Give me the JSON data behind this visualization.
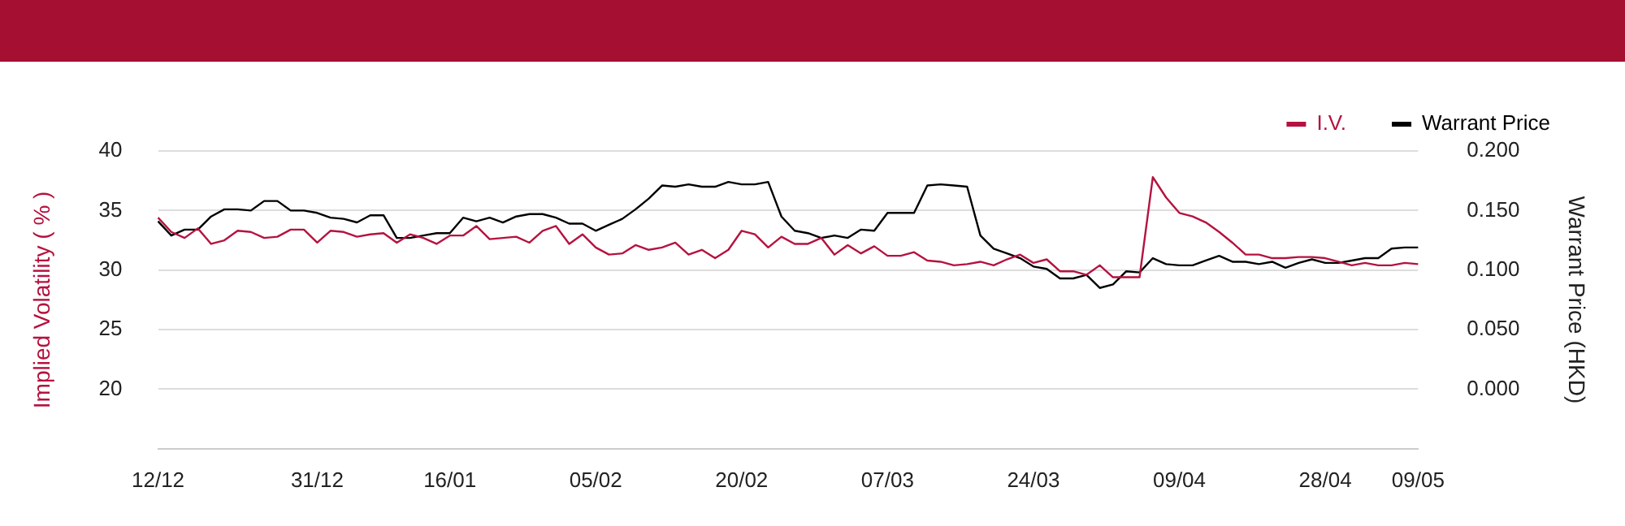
{
  "chart_data": {
    "type": "line",
    "ylabel": "Implied Volatility ( % )",
    "y2label": "Warrant Price (HKD)",
    "categories": [
      "12/12",
      null,
      null,
      null,
      null,
      null,
      null,
      null,
      null,
      null,
      null,
      null,
      "31/12",
      null,
      null,
      null,
      null,
      null,
      null,
      null,
      null,
      null,
      "16/01",
      null,
      null,
      null,
      null,
      null,
      null,
      null,
      null,
      null,
      null,
      "05/02",
      null,
      null,
      null,
      null,
      null,
      null,
      null,
      null,
      null,
      null,
      "20/02",
      null,
      null,
      null,
      null,
      null,
      null,
      null,
      null,
      null,
      null,
      "07/03",
      null,
      null,
      null,
      null,
      null,
      null,
      null,
      null,
      null,
      null,
      "24/03",
      null,
      null,
      null,
      null,
      null,
      null,
      null,
      null,
      null,
      null,
      "09/04",
      null,
      null,
      null,
      null,
      null,
      null,
      null,
      null,
      null,
      null,
      "28/04",
      null,
      null,
      null,
      null,
      null,
      null,
      "09/05"
    ],
    "series": [
      {
        "name": "I.V.",
        "color": "#b5123f",
        "values": [
          34.4,
          33.2,
          32.7,
          33.5,
          32.2,
          32.5,
          33.3,
          33.2,
          32.7,
          32.8,
          33.4,
          33.4,
          32.3,
          33.3,
          33.2,
          32.8,
          33.0,
          33.1,
          32.3,
          33.0,
          32.7,
          32.2,
          32.9,
          32.9,
          33.7,
          32.6,
          32.7,
          32.8,
          32.3,
          33.3,
          33.7,
          32.2,
          33.0,
          31.9,
          31.3,
          31.4,
          32.1,
          31.7,
          31.9,
          32.3,
          31.3,
          31.7,
          31.0,
          31.7,
          33.3,
          33.0,
          31.9,
          32.8,
          32.2,
          32.2,
          32.7,
          31.3,
          32.1,
          31.4,
          32.0,
          31.2,
          31.2,
          31.5,
          30.8,
          30.7,
          30.4,
          30.5,
          30.7,
          30.4,
          30.9,
          31.3,
          30.6,
          30.9,
          29.9,
          29.9,
          29.6,
          30.4,
          29.4,
          29.4,
          29.4,
          37.8,
          36.1,
          34.8,
          34.5,
          34.0,
          33.2,
          32.3,
          31.3,
          31.3,
          31.0,
          31.0,
          31.1,
          31.1,
          31.0,
          30.7,
          30.4,
          30.6,
          30.4,
          30.4,
          30.6,
          30.5
        ]
      },
      {
        "name": "Warrant Price",
        "color": "#000000",
        "axis": "y2",
        "values": [
          0.141,
          0.129,
          0.134,
          0.134,
          0.145,
          0.151,
          0.151,
          0.15,
          0.158,
          0.158,
          0.15,
          0.15,
          0.148,
          0.144,
          0.143,
          0.14,
          0.146,
          0.146,
          0.127,
          0.127,
          0.129,
          0.131,
          0.131,
          0.144,
          0.141,
          0.144,
          0.14,
          0.145,
          0.147,
          0.147,
          0.144,
          0.139,
          0.139,
          0.133,
          0.138,
          0.143,
          0.151,
          0.16,
          0.171,
          0.17,
          0.172,
          0.17,
          0.17,
          0.174,
          0.172,
          0.172,
          0.174,
          0.145,
          0.133,
          0.131,
          0.127,
          0.129,
          0.127,
          0.134,
          0.133,
          0.148,
          0.148,
          0.148,
          0.171,
          0.172,
          0.171,
          0.17,
          0.129,
          0.118,
          0.114,
          0.11,
          0.103,
          0.101,
          0.093,
          0.093,
          0.096,
          0.085,
          0.088,
          0.099,
          0.098,
          0.11,
          0.105,
          0.104,
          0.104,
          0.108,
          0.112,
          0.107,
          0.107,
          0.105,
          0.107,
          0.102,
          0.106,
          0.109,
          0.106,
          0.106,
          0.108,
          0.11,
          0.11,
          0.118,
          0.119,
          0.119
        ]
      }
    ],
    "ylim": [
      15,
      40
    ],
    "yticks": [
      20,
      25,
      30,
      35,
      40
    ],
    "y2lim": [
      -0.05,
      0.2
    ],
    "y2ticks": [
      {
        "value": 0,
        "label": "0.000"
      },
      {
        "value": 0.05,
        "label": "0.050"
      },
      {
        "value": 0.1,
        "label": "0.100"
      },
      {
        "value": 0.15,
        "label": "0.150"
      },
      {
        "value": 0.2,
        "label": "0.200"
      }
    ],
    "grid": "y",
    "legend": "top right",
    "marker": "none"
  }
}
